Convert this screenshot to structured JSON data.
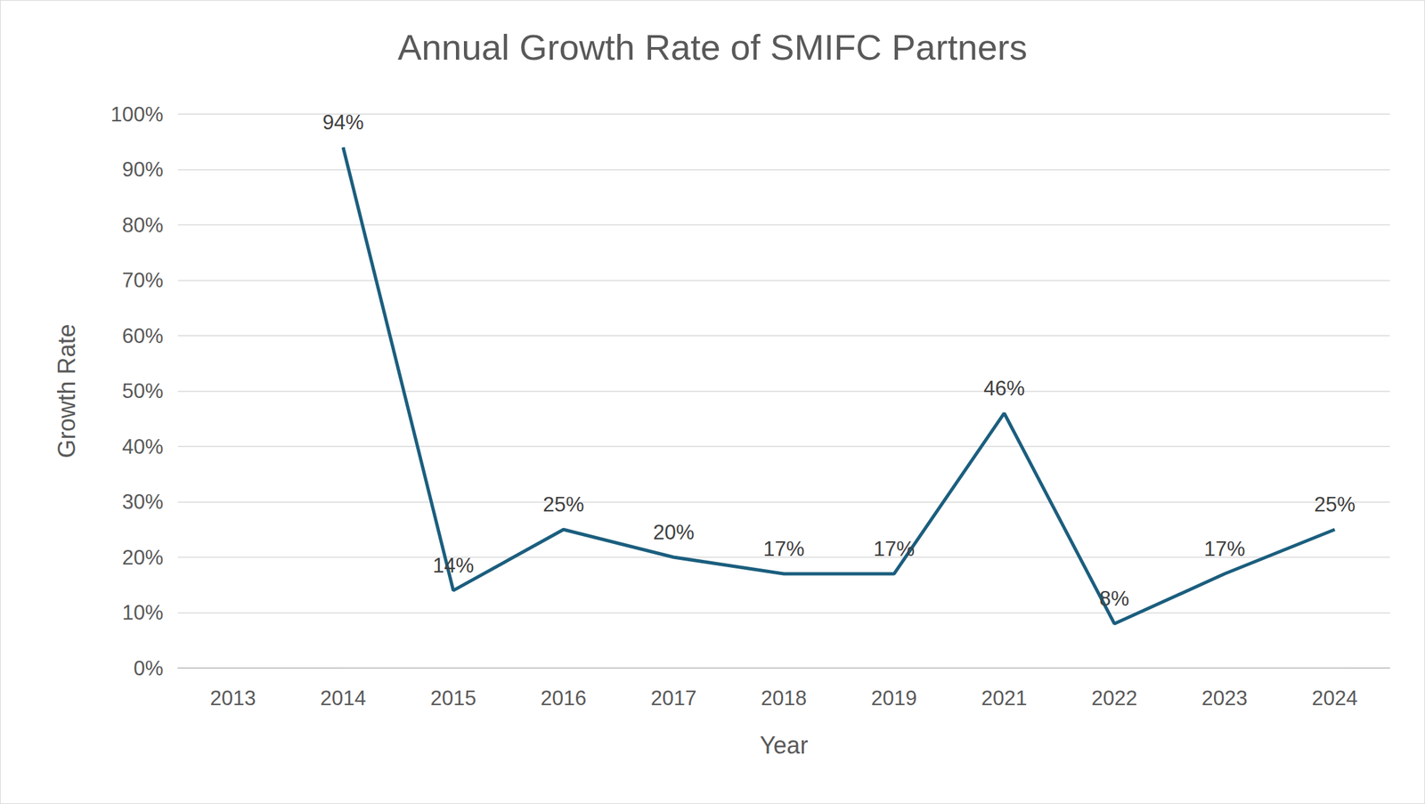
{
  "chart_data": {
    "type": "line",
    "title": "Annual Growth Rate of SMIFC Partners",
    "x_label": "Year",
    "y_label": "Growth Rate",
    "categories": [
      "2013",
      "2014",
      "2015",
      "2016",
      "2017",
      "2018",
      "2019",
      "2021",
      "2022",
      "2023",
      "2024"
    ],
    "values": [
      null,
      94,
      14,
      25,
      20,
      17,
      17,
      46,
      8,
      17,
      25
    ],
    "value_labels": [
      null,
      "94%",
      "14%",
      "25%",
      "20%",
      "17%",
      "17%",
      "46%",
      "8%",
      "17%",
      "25%"
    ],
    "color": "#1b5e7e",
    "ylim": [
      0,
      100
    ],
    "yticks": [
      {
        "value": 0,
        "label": "0%"
      },
      {
        "value": 10,
        "label": "10%"
      },
      {
        "value": 20,
        "label": "20%"
      },
      {
        "value": 30,
        "label": "30%"
      },
      {
        "value": 40,
        "label": "40%"
      },
      {
        "value": 50,
        "label": "50%"
      },
      {
        "value": 60,
        "label": "60%"
      },
      {
        "value": 70,
        "label": "70%"
      },
      {
        "value": 80,
        "label": "80%"
      },
      {
        "value": 90,
        "label": "90%"
      },
      {
        "value": 100,
        "label": "100%"
      }
    ],
    "grid": true,
    "data_labels": true,
    "marker": "none",
    "line_style": "solid"
  }
}
